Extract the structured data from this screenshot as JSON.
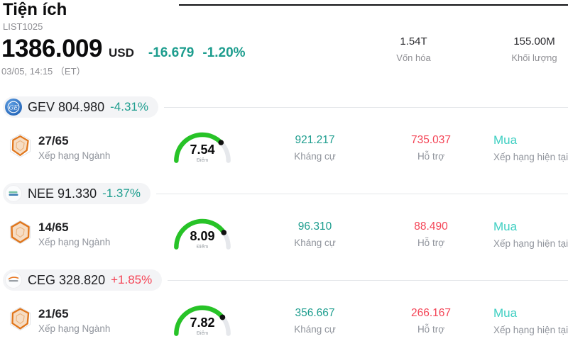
{
  "header": {
    "title": "Tiện ích",
    "subtitle": "LIST1025",
    "price": "1386.009",
    "currency": "USD",
    "change_value": "-16.679",
    "change_pct": "-1.20%",
    "timestamp": "03/05, 14:15 （ET）",
    "stats": [
      {
        "value": "1.54T",
        "label": "Vốn hóa"
      },
      {
        "value": "155.00M",
        "label": "Khối lượng"
      }
    ]
  },
  "colors": {
    "teal_down": "#1d9d8e",
    "red_up": "#f44456",
    "rating_teal": "#3ecfc2",
    "resistance": "#1d9d8e",
    "support": "#f44456",
    "gauge_green": "#27c327",
    "gauge_track": "#e6e8ec",
    "gauge_dot": "#111111"
  },
  "sections": [
    {
      "ticker": "GEV",
      "price": "804.980",
      "change": "-4.31%",
      "change_color": "#1d9d8e",
      "logo": "ge-logo",
      "rank": "27/65",
      "rank_label": "Xếp hạng Ngành",
      "gauge": {
        "score": 7.54,
        "max": 10,
        "unit": "Điểm"
      },
      "resistance": {
        "value": "921.217",
        "label": "Kháng cự"
      },
      "support": {
        "value": "735.037",
        "label": "Hỗ trợ"
      },
      "rating": {
        "value": "Mua",
        "label": "Xếp hạng hiện tại"
      }
    },
    {
      "ticker": "NEE",
      "price": "91.330",
      "change": "-1.37%",
      "change_color": "#1d9d8e",
      "logo": "nextera-logo",
      "rank": "14/65",
      "rank_label": "Xếp hạng Ngành",
      "gauge": {
        "score": 8.09,
        "max": 10,
        "unit": "Điểm"
      },
      "resistance": {
        "value": "96.310",
        "label": "Kháng cự"
      },
      "support": {
        "value": "88.490",
        "label": "Hỗ trợ"
      },
      "rating": {
        "value": "Mua",
        "label": "Xếp hạng hiện tại"
      }
    },
    {
      "ticker": "CEG",
      "price": "328.820",
      "change": "+1.85%",
      "change_color": "#f44456",
      "logo": "constellation-logo",
      "rank": "21/65",
      "rank_label": "Xếp hạng Ngành",
      "gauge": {
        "score": 7.82,
        "max": 10,
        "unit": "Điểm"
      },
      "resistance": {
        "value": "356.667",
        "label": "Kháng cự"
      },
      "support": {
        "value": "266.167",
        "label": "Hỗ trợ"
      },
      "rating": {
        "value": "Mua",
        "label": "Xếp hạng hiện tại"
      }
    }
  ]
}
